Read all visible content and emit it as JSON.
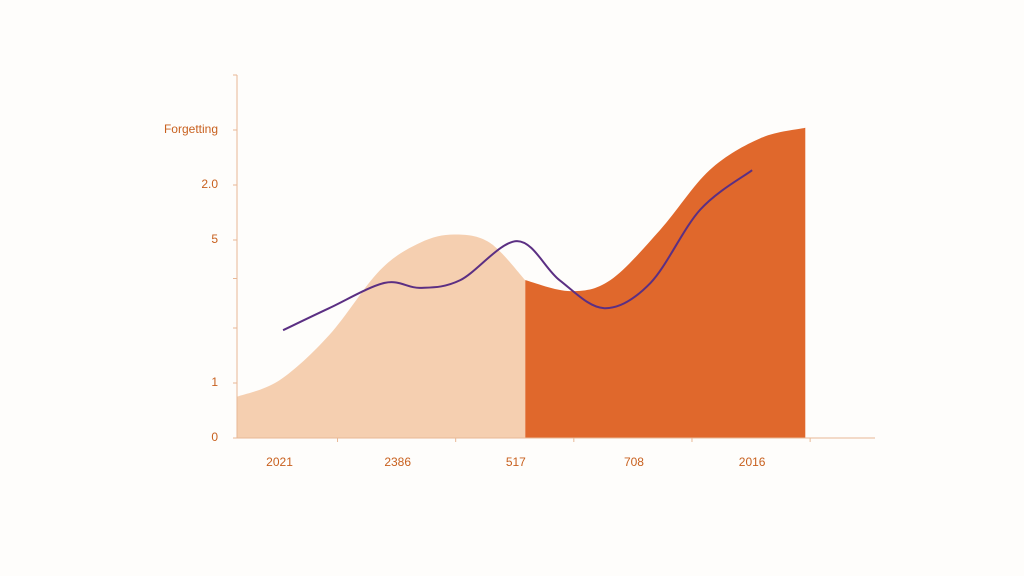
{
  "chart_data": {
    "type": "area",
    "categories": [
      "2021",
      "2386",
      "517",
      "708",
      "2016"
    ],
    "xlim": [
      -0.36,
      5.04
    ],
    "ylim": [
      0,
      6.6
    ],
    "yticks": [
      0,
      1,
      {
        "value": 2,
        "label": null
      },
      {
        "value": 2.9,
        "label": null
      },
      {
        "value": 3.6,
        "label": "5"
      },
      {
        "value": 4.6,
        "label": "2.0"
      },
      {
        "value": 5.6,
        "label": "Forgetting"
      },
      {
        "value": 6.6,
        "label": null
      }
    ],
    "series": [
      {
        "type": "area",
        "color": "#f5cfb0",
        "x": [
          -0.36,
          0,
          0.42,
          0.85,
          1.19,
          1.48,
          1.78,
          2.08
        ],
        "values": [
          0.75,
          1.05,
          1.87,
          3.05,
          3.55,
          3.7,
          3.55,
          2.87
        ]
      },
      {
        "type": "area",
        "color": "#e0682c",
        "x": [
          2.08,
          2.46,
          2.8,
          3.22,
          3.64,
          4.07,
          4.45
        ],
        "values": [
          2.87,
          2.67,
          2.87,
          3.78,
          4.87,
          5.45,
          5.64
        ]
      },
      {
        "type": "line",
        "color": "#5b2f83",
        "x": [
          0.03,
          0.42,
          0.89,
          1.19,
          1.53,
          2.01,
          2.37,
          2.75,
          3.14,
          3.56,
          4.0
        ],
        "values": [
          1.96,
          2.36,
          2.82,
          2.73,
          2.87,
          3.58,
          2.87,
          2.36,
          2.82,
          4.15,
          4.87
        ]
      }
    ]
  }
}
